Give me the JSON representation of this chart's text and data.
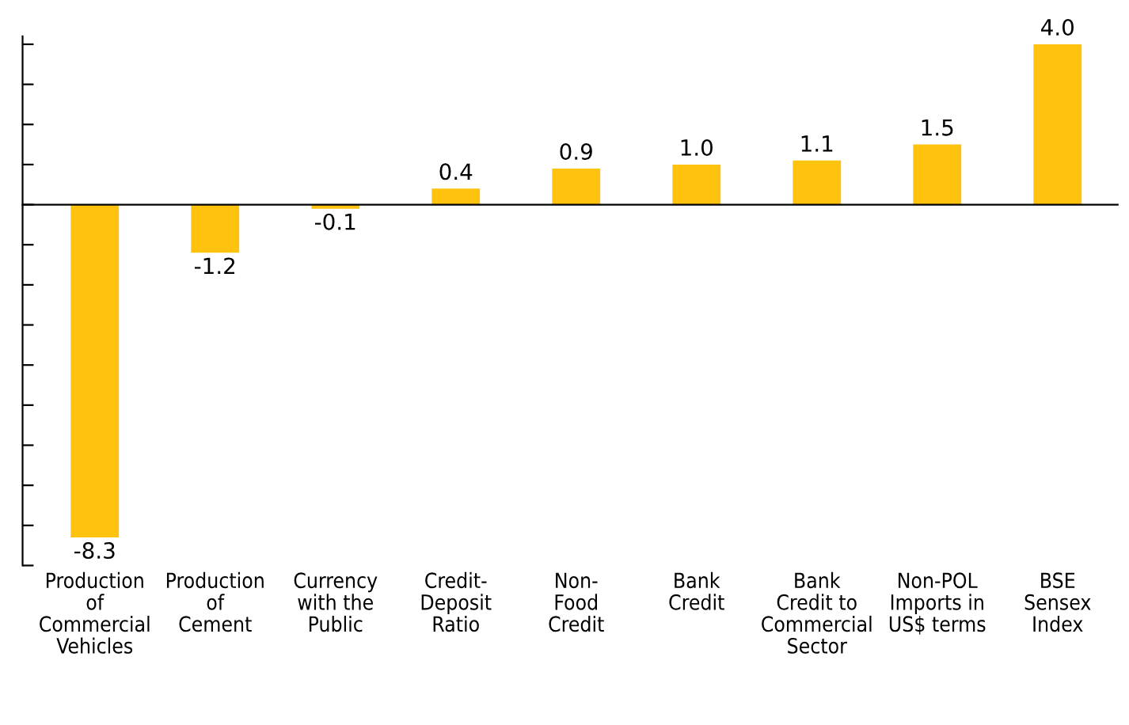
{
  "chart_data": {
    "type": "bar",
    "categories": [
      "Production\nof\nCommercial\nVehicles",
      "Production\nof\nCement",
      "Currency\nwith the\nPublic",
      "Credit-\nDeposit\nRatio",
      "Non-\nFood\nCredit",
      "Bank\nCredit",
      "Bank\nCredit to\nCommercial\nSector",
      "Non-POL\nImports in\nUS$ terms",
      "BSE\nSensex\nIndex"
    ],
    "values": [
      -8.3,
      -1.2,
      -0.1,
      0.4,
      0.9,
      1.0,
      1.1,
      1.5,
      4.0
    ],
    "color": "#ffc20e",
    "value_labels": [
      "-8.3",
      "-1.2",
      "-0.1",
      "0.4",
      "0.9",
      "1.0",
      "1.1",
      "1.5",
      "4.0"
    ],
    "ylim": [
      -9,
      4.2
    ],
    "yticks": [
      {
        "value": -9,
        "label": null
      },
      {
        "value": -8,
        "label": null
      },
      {
        "value": -7,
        "label": null
      },
      {
        "value": -6,
        "label": null
      },
      {
        "value": -5,
        "label": null
      },
      {
        "value": -4,
        "label": null
      },
      {
        "value": -3,
        "label": null
      },
      {
        "value": -2,
        "label": null
      },
      {
        "value": -1,
        "label": null
      },
      {
        "value": 0,
        "label": null
      },
      {
        "value": 1,
        "label": null
      },
      {
        "value": 2,
        "label": null
      },
      {
        "value": 3,
        "label": null
      },
      {
        "value": 4,
        "label": null
      }
    ],
    "tick_labels": "x",
    "grid": false
  }
}
